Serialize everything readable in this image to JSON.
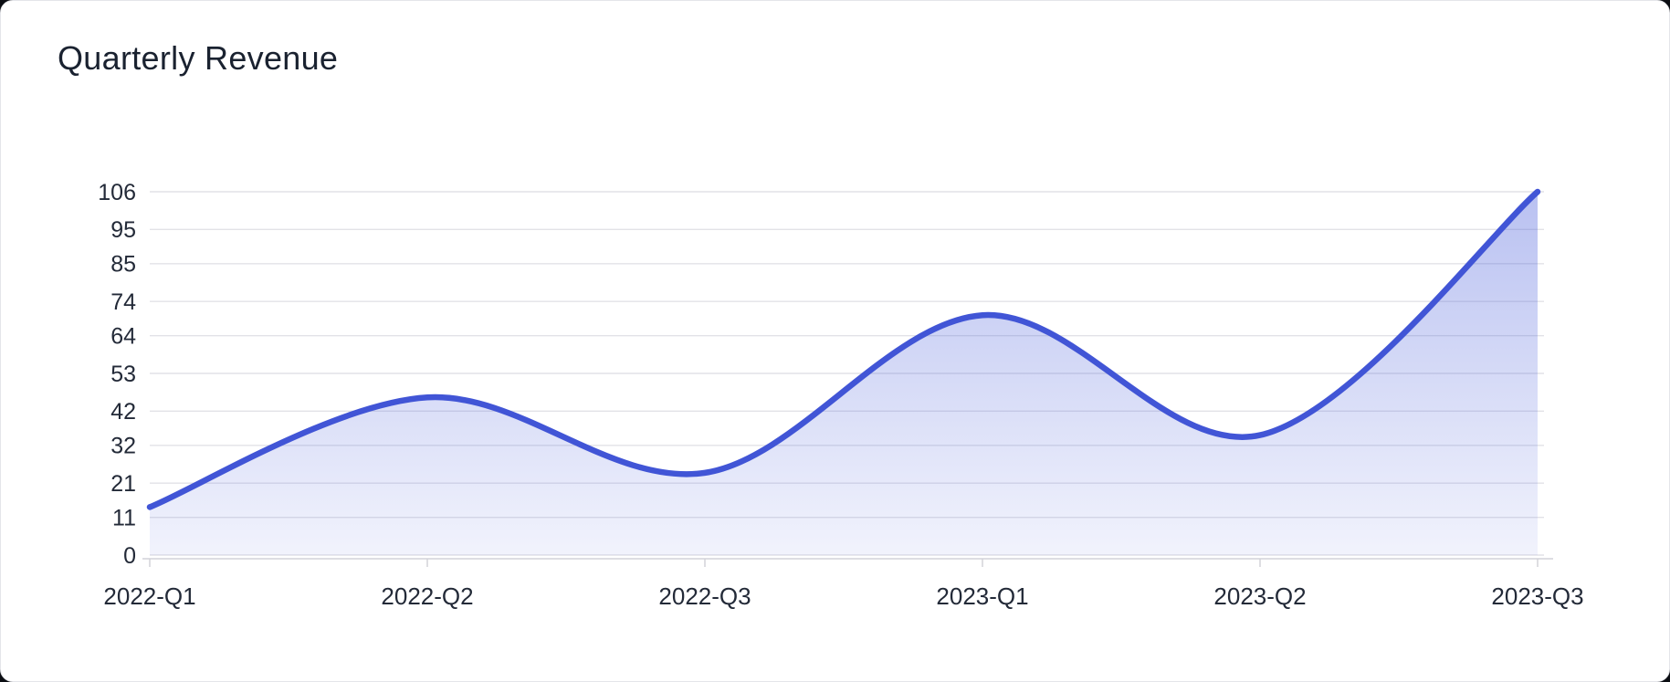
{
  "page": {
    "title": "Quarterly Revenue"
  },
  "chart_data": {
    "type": "area",
    "title": "Quarterly Revenue",
    "categories": [
      "2022-Q1",
      "2022-Q2",
      "2022-Q3",
      "2023-Q1",
      "2023-Q2",
      "2023-Q3"
    ],
    "values": [
      14,
      46,
      24,
      70,
      35,
      106
    ],
    "xlabel": "",
    "ylabel": "",
    "ylim": [
      0,
      106
    ],
    "yticks": [
      0,
      11,
      21,
      32,
      42,
      53,
      64,
      74,
      85,
      95,
      106
    ],
    "grid": true,
    "smooth": true,
    "legend": "none",
    "colors": {
      "line": "#4155d6",
      "area_top": "rgba(80,100,220,0.40)",
      "area_bottom": "rgba(80,100,220,0.08)",
      "gridline": "#e2e2e7",
      "axis_line": "#d2d2d9",
      "tick_label": "#232a38",
      "title": "#1a2230",
      "card_background": "#ffffff",
      "page_background": "#0c0e13"
    }
  }
}
